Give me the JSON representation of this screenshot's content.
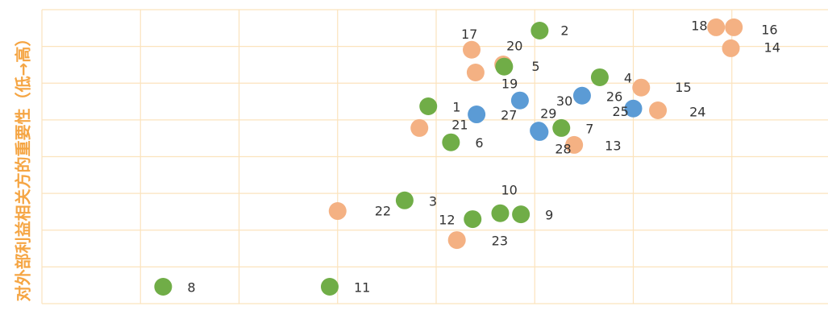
{
  "chart_data": {
    "type": "scatter",
    "y_label": "对外部利益相关方的重要性（低→高）",
    "xlim": [
      0,
      8
    ],
    "ylim": [
      0,
      8
    ],
    "xticks": [
      0,
      1,
      2,
      3,
      4,
      5,
      6,
      7,
      8
    ],
    "yticks": [
      0,
      1,
      2,
      3,
      4,
      5,
      6,
      7,
      8
    ],
    "grid": true,
    "series": [
      {
        "color": "#70ad47",
        "point_labels": [
          "1",
          "2",
          "3",
          "4",
          "5",
          "6",
          "7",
          "8",
          "9",
          "10",
          "11",
          "12"
        ],
        "x": [
          3.92,
          5.05,
          3.68,
          5.66,
          4.69,
          4.15,
          5.27,
          1.23,
          4.86,
          4.65,
          2.92,
          4.37
        ],
        "values": [
          5.37,
          7.43,
          2.81,
          6.16,
          6.45,
          4.39,
          4.78,
          0.46,
          2.43,
          2.46,
          0.46,
          2.3
        ]
      },
      {
        "color": "#f4b183",
        "point_labels": [
          "13",
          "14",
          "15",
          "16",
          "17",
          "18",
          "19",
          "20",
          "21",
          "22",
          "23",
          "24"
        ],
        "x": [
          5.4,
          6.99,
          6.08,
          7.02,
          4.36,
          6.84,
          4.4,
          4.68,
          3.83,
          3.0,
          4.21,
          6.25
        ],
        "values": [
          4.32,
          6.95,
          5.88,
          7.52,
          6.91,
          7.52,
          6.29,
          6.51,
          4.78,
          2.52,
          1.73,
          5.26
        ]
      },
      {
        "color": "#5b9bd5",
        "point_labels": [
          "25",
          "26",
          "27",
          "28",
          "29",
          "30"
        ],
        "x": [
          6.0,
          5.48,
          4.41,
          5.05,
          5.04,
          4.85
        ],
        "values": [
          5.31,
          5.66,
          5.15,
          4.67,
          4.71,
          5.53
        ]
      }
    ]
  }
}
